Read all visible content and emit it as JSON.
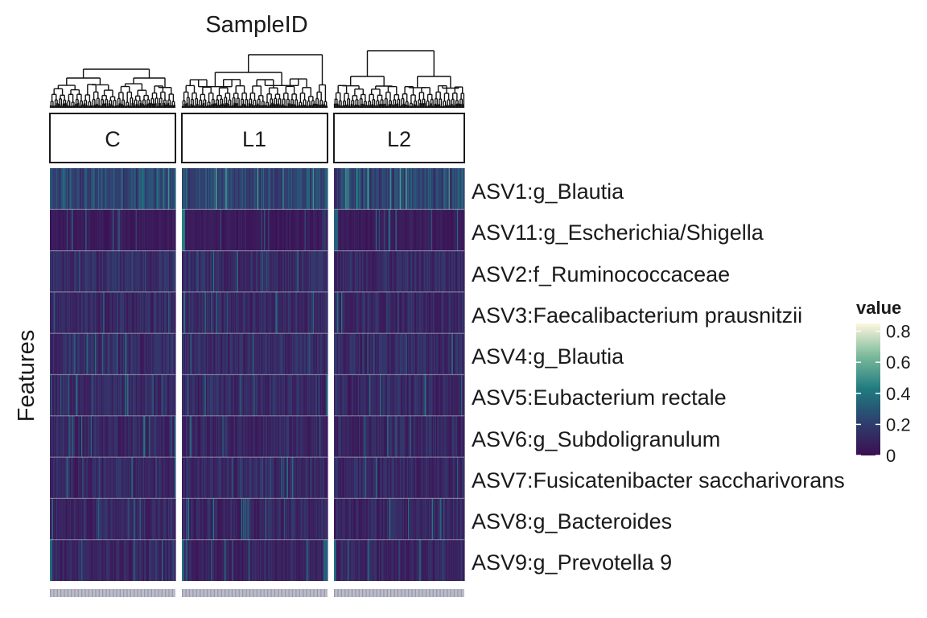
{
  "chart_data": {
    "type": "heatmap",
    "title": "SampleID",
    "ylabel": "Features",
    "xlabel": "",
    "facets": [
      "C",
      "L1",
      "L2"
    ],
    "features": [
      "ASV1:g_Blautia",
      "ASV11:g_Escherichia/Shigella",
      "ASV2:f_Ruminococcaceae",
      "ASV3:Faecalibacterium prausnitzii",
      "ASV4:g_Blautia",
      "ASV5:Eubacterium rectale",
      "ASV6:g_Subdoligranulum",
      "ASV7:Fusicatenibacter saccharivorans",
      "ASV8:g_Bacteroides",
      "ASV9:g_Prevotella 9"
    ],
    "columns_per_facet": [
      120,
      140,
      125
    ],
    "feature_mean_value": [
      0.22,
      0.05,
      0.1,
      0.1,
      0.1,
      0.1,
      0.09,
      0.09,
      0.09,
      0.08
    ],
    "value_range": [
      0,
      0.85
    ],
    "dendrogram": "per facet, on top of columns",
    "legend": {
      "title": "value",
      "ticks": [
        "0.8",
        "0.6",
        "0.4",
        "0.2",
        "0"
      ],
      "tick_values": [
        0.8,
        0.6,
        0.4,
        0.2,
        0
      ],
      "colormap": "viridis (mako-like)",
      "colors": [
        "#3b0f52",
        "#2d3f6e",
        "#1f7a80",
        "#7ab99a",
        "#fdf7dd"
      ],
      "placement": "right"
    }
  }
}
